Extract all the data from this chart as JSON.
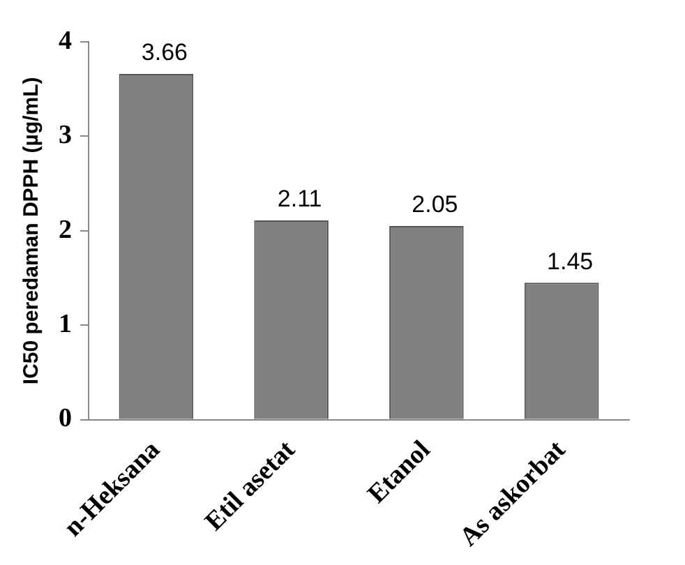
{
  "chart_data": {
    "type": "bar",
    "ylabel": "IC50 peredaman DPPH (µg/mL)",
    "categories": [
      "n-Heksana",
      "Etil asetat",
      "Etanol",
      "As askorbat"
    ],
    "values": [
      3.66,
      2.11,
      2.05,
      1.45
    ],
    "color": "#808080",
    "ylim": [
      0,
      4
    ],
    "yticks": [
      0,
      1,
      2,
      3,
      4
    ],
    "grid": false,
    "legend": false,
    "data_labels": true
  }
}
